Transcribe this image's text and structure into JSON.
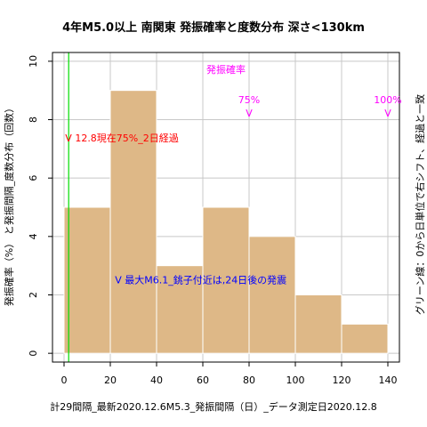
{
  "chart_data": {
    "type": "bar",
    "title": "4年M5.0以上 南関東 発振確率と度数分布 深さ<130km",
    "xlabel": "計29間隔_最新2020.12.6M5.3_発振間隔（日）_データ測定日2020.12.8",
    "ylabel": "発振確率（%） と発振間隔_度数分布（回数）",
    "ylabel_right": "グリーン線：0から日単位で右シフト、経過と一致",
    "xlim": [
      -5,
      145
    ],
    "ylim": [
      -0.3,
      10.3
    ],
    "xticks": [
      0,
      20,
      40,
      60,
      80,
      100,
      120,
      140
    ],
    "yticks": [
      0,
      2,
      4,
      6,
      8,
      10
    ],
    "bar_color": "#deb887",
    "bins": [
      {
        "x0": 0,
        "x1": 20,
        "value": 5
      },
      {
        "x0": 20,
        "x1": 40,
        "value": 9
      },
      {
        "x0": 40,
        "x1": 60,
        "value": 3
      },
      {
        "x0": 60,
        "x1": 80,
        "value": 5
      },
      {
        "x0": 80,
        "x1": 100,
        "value": 4
      },
      {
        "x0": 100,
        "x1": 120,
        "value": 2
      },
      {
        "x0": 120,
        "x1": 140,
        "value": 1
      }
    ],
    "green_line_x": 2,
    "green_color": "#00dd00",
    "annotations": {
      "prob_label": "発振確率",
      "p75": "75%",
      "p75_x": 80,
      "p100": "100%",
      "p100_x": 140,
      "red_note": "V 12.8現在75%_2日経過",
      "blue_note": "V 最大M6.1_銚子付近は,24日後の発震",
      "magenta": "#ff00ff",
      "red": "#ff0000",
      "blue": "#0000ff"
    }
  }
}
